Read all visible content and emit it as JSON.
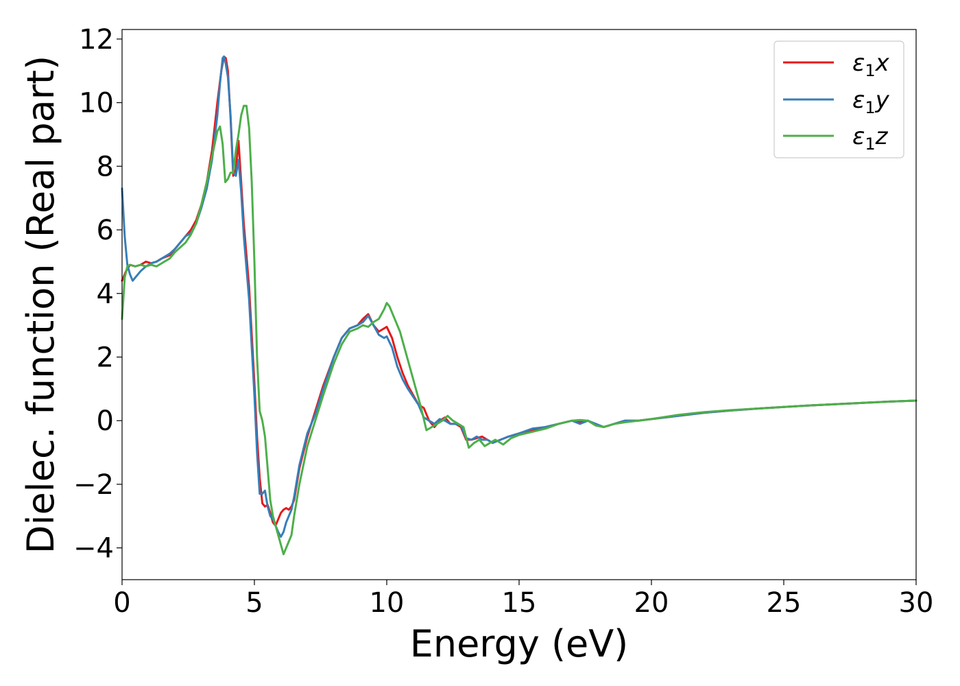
{
  "chart_data": {
    "type": "line",
    "title": "",
    "xlabel": "Energy (eV)",
    "ylabel": "Dielec. function (Real part)",
    "xlim": [
      0,
      30
    ],
    "ylim": [
      -5,
      12.3
    ],
    "xticks": [
      0,
      5,
      10,
      15,
      20,
      25,
      30
    ],
    "yticks": [
      -4,
      -2,
      0,
      2,
      4,
      6,
      8,
      10,
      12
    ],
    "xtick_labels": [
      "0",
      "5",
      "10",
      "15",
      "20",
      "25",
      "30"
    ],
    "ytick_labels": [
      "−4",
      "−2",
      "0",
      "2",
      "4",
      "6",
      "8",
      "10",
      "12"
    ],
    "grid": false,
    "legend_position": "top-right",
    "series": [
      {
        "name": "x",
        "legend_symbol": "ε",
        "legend_sub": "1",
        "color": "#e41a1c",
        "x": [
          0,
          0.15,
          0.3,
          0.5,
          0.7,
          0.9,
          1.1,
          1.3,
          1.5,
          1.8,
          2.0,
          2.2,
          2.4,
          2.6,
          2.8,
          3.0,
          3.2,
          3.4,
          3.6,
          3.75,
          3.85,
          3.92,
          4.0,
          4.1,
          4.2,
          4.3,
          4.4,
          4.5,
          4.6,
          4.8,
          5.0,
          5.1,
          5.2,
          5.3,
          5.4,
          5.5,
          5.6,
          5.7,
          5.8,
          5.9,
          6.0,
          6.1,
          6.2,
          6.3,
          6.4,
          6.5,
          6.7,
          7.0,
          7.3,
          7.6,
          8.0,
          8.3,
          8.6,
          8.9,
          9.1,
          9.3,
          9.5,
          9.7,
          9.9,
          10.0,
          10.2,
          10.4,
          10.6,
          10.8,
          11.0,
          11.2,
          11.4,
          11.6,
          11.8,
          12.0,
          12.2,
          12.4,
          12.6,
          12.8,
          13.0,
          13.2,
          13.4,
          13.6,
          13.8,
          14.0,
          14.3,
          14.6,
          15.0,
          15.5,
          16.0,
          16.5,
          17.0,
          17.3,
          17.6,
          17.9,
          18.2,
          18.6,
          19.0,
          19.5,
          20.0,
          21.0,
          22.0,
          23.0,
          24.0,
          25.0,
          26.0,
          27.0,
          28.0,
          29.0,
          30.0
        ],
        "y": [
          4.4,
          4.7,
          4.9,
          4.85,
          4.9,
          5.0,
          4.95,
          5.0,
          5.1,
          5.2,
          5.4,
          5.6,
          5.8,
          6.0,
          6.3,
          6.8,
          7.5,
          8.5,
          10.0,
          11.0,
          11.45,
          11.4,
          11.0,
          9.5,
          7.7,
          7.9,
          8.8,
          7.5,
          6.2,
          4.2,
          1.2,
          -0.5,
          -1.8,
          -2.6,
          -2.7,
          -2.65,
          -2.9,
          -3.2,
          -3.3,
          -3.1,
          -2.9,
          -2.8,
          -2.75,
          -2.8,
          -2.7,
          -2.5,
          -1.5,
          -0.5,
          0.3,
          1.1,
          2.0,
          2.6,
          2.9,
          3.0,
          3.2,
          3.35,
          3.0,
          2.8,
          2.9,
          2.95,
          2.6,
          2.0,
          1.5,
          1.1,
          0.8,
          0.5,
          0.4,
          0.0,
          -0.2,
          0.0,
          0.1,
          -0.1,
          -0.1,
          -0.2,
          -0.6,
          -0.6,
          -0.55,
          -0.5,
          -0.6,
          -0.7,
          -0.6,
          -0.5,
          -0.4,
          -0.3,
          -0.2,
          -0.1,
          0.0,
          -0.05,
          0.0,
          -0.15,
          -0.2,
          -0.1,
          0.0,
          0.0,
          0.05,
          0.15,
          0.25,
          0.32,
          0.38,
          0.43,
          0.48,
          0.52,
          0.56,
          0.6,
          0.63
        ]
      },
      {
        "name": "y",
        "legend_symbol": "ε",
        "legend_sub": "1",
        "color": "#377eb8",
        "x": [
          0,
          0.1,
          0.2,
          0.3,
          0.4,
          0.5,
          0.7,
          0.9,
          1.1,
          1.3,
          1.5,
          1.8,
          2.0,
          2.2,
          2.4,
          2.6,
          2.8,
          3.0,
          3.2,
          3.4,
          3.6,
          3.7,
          3.8,
          3.85,
          3.9,
          4.0,
          4.1,
          4.2,
          4.3,
          4.4,
          4.5,
          4.6,
          4.8,
          5.0,
          5.1,
          5.2,
          5.3,
          5.4,
          5.5,
          5.6,
          5.7,
          5.8,
          5.9,
          6.0,
          6.1,
          6.2,
          6.3,
          6.4,
          6.5,
          6.7,
          7.0,
          7.3,
          7.6,
          8.0,
          8.3,
          8.6,
          8.9,
          9.1,
          9.3,
          9.5,
          9.7,
          9.9,
          10.0,
          10.2,
          10.4,
          10.6,
          10.8,
          11.0,
          11.2,
          11.4,
          11.6,
          11.8,
          12.0,
          12.2,
          12.4,
          12.6,
          12.8,
          13.0,
          13.2,
          13.4,
          13.6,
          13.8,
          14.0,
          14.3,
          14.6,
          15.0,
          15.5,
          16.0,
          16.5,
          17.0,
          17.3,
          17.6,
          17.9,
          18.2,
          18.6,
          19.0,
          19.5,
          20.0,
          21.0,
          22.0,
          23.0,
          24.0,
          25.0,
          26.0,
          27.0,
          28.0,
          29.0,
          30.0
        ],
        "y": [
          7.3,
          5.8,
          4.9,
          4.6,
          4.4,
          4.5,
          4.7,
          4.85,
          4.95,
          5.0,
          5.1,
          5.25,
          5.4,
          5.6,
          5.8,
          5.9,
          6.2,
          6.7,
          7.3,
          8.2,
          9.6,
          10.6,
          11.4,
          11.45,
          11.3,
          10.8,
          9.6,
          7.8,
          7.7,
          8.2,
          7.2,
          5.8,
          3.8,
          0.8,
          -1.0,
          -2.3,
          -2.3,
          -2.2,
          -2.7,
          -3.0,
          -3.1,
          -3.3,
          -3.5,
          -3.65,
          -3.5,
          -3.2,
          -3.0,
          -2.8,
          -2.4,
          -1.4,
          -0.4,
          0.2,
          1.0,
          2.0,
          2.6,
          2.9,
          3.0,
          3.1,
          3.3,
          3.0,
          2.7,
          2.6,
          2.65,
          2.3,
          1.7,
          1.3,
          1.0,
          0.75,
          0.5,
          0.1,
          0.0,
          -0.1,
          0.05,
          0.0,
          -0.1,
          -0.1,
          -0.15,
          -0.55,
          -0.6,
          -0.5,
          -0.6,
          -0.6,
          -0.7,
          -0.6,
          -0.5,
          -0.4,
          -0.25,
          -0.2,
          -0.1,
          0.0,
          -0.1,
          0.0,
          -0.1,
          -0.2,
          -0.1,
          0.0,
          0.0,
          0.05,
          0.15,
          0.25,
          0.32,
          0.38,
          0.43,
          0.48,
          0.52,
          0.56,
          0.6,
          0.63
        ]
      },
      {
        "name": "z",
        "legend_symbol": "ε",
        "legend_sub": "1",
        "color": "#4daf4a",
        "x": [
          0,
          0.1,
          0.2,
          0.3,
          0.5,
          0.7,
          0.9,
          1.1,
          1.3,
          1.5,
          1.8,
          2.0,
          2.2,
          2.4,
          2.6,
          2.8,
          3.0,
          3.2,
          3.4,
          3.6,
          3.7,
          3.8,
          3.9,
          4.0,
          4.1,
          4.2,
          4.3,
          4.4,
          4.5,
          4.6,
          4.7,
          4.8,
          4.9,
          5.0,
          5.1,
          5.2,
          5.3,
          5.4,
          5.5,
          5.6,
          5.7,
          5.8,
          5.9,
          6.0,
          6.1,
          6.2,
          6.3,
          6.4,
          6.5,
          6.7,
          7.0,
          7.3,
          7.6,
          8.0,
          8.3,
          8.6,
          8.9,
          9.1,
          9.3,
          9.5,
          9.7,
          9.9,
          10.0,
          10.1,
          10.3,
          10.5,
          10.7,
          10.9,
          11.1,
          11.3,
          11.5,
          11.7,
          11.9,
          12.1,
          12.3,
          12.5,
          12.7,
          12.9,
          13.1,
          13.3,
          13.5,
          13.7,
          13.9,
          14.1,
          14.4,
          14.7,
          15.0,
          15.5,
          16.0,
          16.5,
          17.0,
          17.3,
          17.6,
          17.9,
          18.2,
          18.6,
          19.0,
          19.5,
          20.0,
          21.0,
          22.0,
          23.0,
          24.0,
          25.0,
          26.0,
          27.0,
          28.0,
          29.0,
          30.0
        ],
        "y": [
          3.2,
          4.5,
          4.85,
          4.9,
          4.85,
          4.9,
          4.85,
          4.9,
          4.85,
          4.95,
          5.1,
          5.3,
          5.45,
          5.6,
          5.85,
          6.2,
          6.8,
          7.5,
          8.3,
          9.1,
          9.25,
          8.7,
          7.5,
          7.6,
          7.8,
          7.8,
          8.5,
          9.0,
          9.6,
          9.9,
          9.9,
          9.2,
          7.5,
          5.0,
          2.0,
          0.3,
          0.0,
          -0.5,
          -1.5,
          -2.5,
          -3.0,
          -3.3,
          -3.6,
          -3.9,
          -4.2,
          -4.0,
          -3.8,
          -3.6,
          -3.0,
          -2.0,
          -0.8,
          0.0,
          0.8,
          1.8,
          2.4,
          2.8,
          2.9,
          3.0,
          2.95,
          3.1,
          3.2,
          3.5,
          3.7,
          3.6,
          3.2,
          2.8,
          2.2,
          1.6,
          1.0,
          0.4,
          -0.3,
          -0.2,
          -0.1,
          0.0,
          0.15,
          0.0,
          -0.1,
          -0.2,
          -0.85,
          -0.7,
          -0.6,
          -0.8,
          -0.7,
          -0.6,
          -0.75,
          -0.55,
          -0.45,
          -0.35,
          -0.25,
          -0.1,
          0.0,
          0.02,
          0.0,
          -0.15,
          -0.2,
          -0.1,
          -0.05,
          0.0,
          0.05,
          0.18,
          0.27,
          0.33,
          0.38,
          0.43,
          0.48,
          0.52,
          0.56,
          0.6,
          0.63
        ]
      }
    ]
  }
}
